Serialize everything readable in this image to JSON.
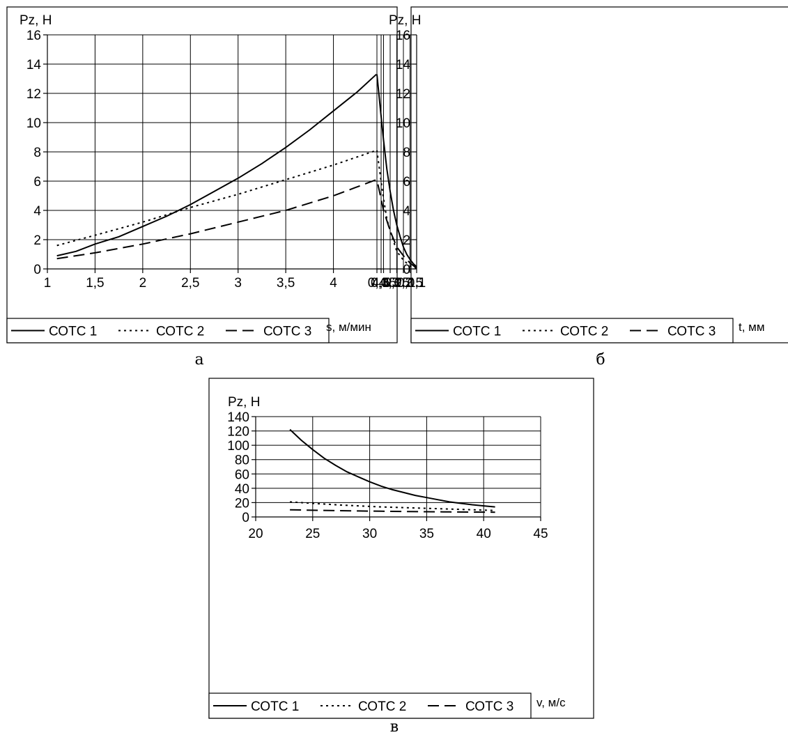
{
  "chart_data": [
    {
      "type": "line",
      "panel_label": "а",
      "ylabel": "Pz, Н",
      "xlabel": "s, м/мин",
      "xlim": [
        1,
        4.5
      ],
      "ylim": [
        0,
        16
      ],
      "x_ticks": [
        "1",
        "1,5",
        "2",
        "2,5",
        "3",
        "3,5",
        "4",
        "4,5"
      ],
      "y_ticks": [
        "0",
        "2",
        "4",
        "6",
        "8",
        "10",
        "12",
        "14",
        "16"
      ],
      "grid": true,
      "legend_position": "bottom",
      "series": [
        {
          "name": "СОТС 1",
          "style": "solid",
          "x": [
            1.1,
            1.3,
            1.5,
            1.75,
            2.0,
            2.25,
            2.5,
            2.75,
            3.0,
            3.25,
            3.5,
            3.75,
            4.0,
            4.25,
            4.45
          ],
          "y": [
            0.9,
            1.2,
            1.7,
            2.2,
            2.9,
            3.6,
            4.4,
            5.3,
            6.2,
            7.2,
            8.3,
            9.5,
            10.8,
            12.1,
            13.3
          ]
        },
        {
          "name": "СОТС 2",
          "style": "dotted",
          "x": [
            1.1,
            1.5,
            2.0,
            2.5,
            3.0,
            3.5,
            4.0,
            4.45
          ],
          "y": [
            1.6,
            2.3,
            3.2,
            4.2,
            5.1,
            6.1,
            7.1,
            8.1
          ]
        },
        {
          "name": "СОТС 3",
          "style": "dashed",
          "x": [
            1.1,
            1.5,
            2.0,
            2.5,
            3.0,
            3.5,
            4.0,
            4.45
          ],
          "y": [
            0.7,
            1.1,
            1.7,
            2.4,
            3.2,
            4.0,
            5.0,
            6.1
          ]
        }
      ]
    },
    {
      "type": "line",
      "panel_label": "б",
      "ylabel": "Pz, Н",
      "xlabel": "t, мм",
      "xlim": [
        0.1,
        0.4
      ],
      "ylim": [
        0,
        16
      ],
      "x_ticks": [
        "0,1",
        "0,15",
        "0,2",
        "0,25",
        "0,3",
        "0,35",
        "0,4"
      ],
      "y_ticks": [
        "0",
        "2",
        "4",
        "6",
        "8",
        "10",
        "12",
        "14",
        "16"
      ],
      "grid": true,
      "legend_position": "bottom",
      "series": [
        {
          "name": "СОТС 1",
          "style": "solid",
          "x": [
            0.1,
            0.125,
            0.15,
            0.175,
            0.2,
            0.225,
            0.25,
            0.275,
            0.3,
            0.325,
            0.35,
            0.375,
            0.4
          ],
          "y": [
            0.15,
            0.35,
            0.65,
            1.0,
            1.5,
            2.2,
            3.0,
            4.0,
            5.3,
            6.8,
            8.8,
            11.0,
            13.3
          ]
        },
        {
          "name": "СОТС 2",
          "style": "dotted",
          "x": [
            0.1,
            0.15,
            0.2,
            0.25,
            0.275,
            0.3,
            0.325,
            0.35,
            0.375,
            0.4
          ],
          "y": [
            0.05,
            0.2,
            0.6,
            1.2,
            1.9,
            2.6,
            3.4,
            4.8,
            6.4,
            8.1
          ]
        },
        {
          "name": "СОТС 3",
          "style": "dashed",
          "x": [
            0.1,
            0.15,
            0.2,
            0.25,
            0.3,
            0.35,
            0.4
          ],
          "y": [
            0.05,
            0.4,
            0.9,
            1.5,
            2.6,
            4.0,
            6.1
          ]
        }
      ]
    },
    {
      "type": "line",
      "panel_label": "в",
      "ylabel": "Pz, Н",
      "xlabel": "v, м/с",
      "xlim": [
        20,
        45
      ],
      "ylim": [
        0,
        140
      ],
      "x_ticks": [
        "20",
        "25",
        "30",
        "35",
        "40",
        "45"
      ],
      "y_ticks": [
        "0",
        "20",
        "40",
        "60",
        "80",
        "100",
        "120",
        "140"
      ],
      "grid": true,
      "legend_position": "bottom",
      "series": [
        {
          "name": "СОТС 1",
          "style": "solid",
          "x": [
            23,
            24,
            25,
            26,
            27,
            28,
            29,
            30,
            31,
            32,
            33,
            34,
            35,
            36,
            37,
            38,
            39,
            40,
            41
          ],
          "y": [
            122,
            107,
            94,
            82,
            72,
            63,
            56,
            49,
            43,
            38,
            34,
            30,
            27,
            24,
            21,
            19,
            17,
            15.5,
            14
          ]
        },
        {
          "name": "СОТС 2",
          "style": "dotted",
          "x": [
            23,
            25,
            27,
            29,
            31,
            33,
            35,
            37,
            39,
            41
          ],
          "y": [
            21,
            19,
            17,
            15.5,
            14,
            13,
            12,
            11,
            10,
            9
          ]
        },
        {
          "name": "СОТС 3",
          "style": "dashed",
          "x": [
            23,
            25,
            27,
            29,
            31,
            33,
            35,
            37,
            39,
            41
          ],
          "y": [
            10,
            9.3,
            8.8,
            8.4,
            8,
            7.6,
            7.3,
            7,
            6.8,
            6.6
          ]
        }
      ]
    }
  ]
}
